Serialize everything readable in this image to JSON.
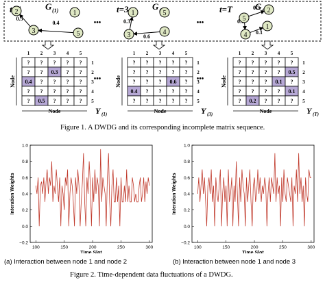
{
  "figure1": {
    "graphs": [
      {
        "t_label": "t=1",
        "g_label": "G",
        "g_sub": "(1)",
        "nodes": [
          {
            "id": "1"
          },
          {
            "id": "2"
          },
          {
            "id": "3"
          },
          {
            "id": "5"
          }
        ],
        "edges": [
          {
            "label": "0.5"
          },
          {
            "label": "0.4"
          }
        ]
      },
      {
        "t_label": "t=3",
        "g_label": "G",
        "g_sub": "(3)",
        "nodes": [
          {
            "id": "1"
          },
          {
            "id": "5"
          },
          {
            "id": "3"
          },
          {
            "id": "4"
          }
        ],
        "edges": [
          {
            "label": "0.3"
          },
          {
            "label": "0.6"
          }
        ]
      },
      {
        "t_label": "t=T",
        "g_label": "G",
        "g_sub": "(T)",
        "nodes": [
          {
            "id": "2"
          },
          {
            "id": "1"
          },
          {
            "id": "5"
          },
          {
            "id": "4"
          }
        ],
        "edges": [
          {
            "label": "0.2"
          },
          {
            "label": "0.1"
          },
          {
            "label": "0.1"
          }
        ]
      }
    ],
    "ellipsis": "•••",
    "matrices": [
      {
        "y_label": "Y",
        "y_sub": "(1)",
        "col_labels": [
          "1",
          "2",
          "3",
          "4",
          "5"
        ],
        "row_labels": [
          "1",
          "2",
          "3",
          "4",
          "5"
        ],
        "cells": [
          [
            "?",
            "?",
            "?",
            "?",
            "?"
          ],
          [
            "?",
            "?",
            "0.3",
            "?",
            "?"
          ],
          [
            "0.4",
            "?",
            "?",
            "?",
            "?"
          ],
          [
            "?",
            "?",
            "?",
            "?",
            "?"
          ],
          [
            "?",
            "0.5",
            "?",
            "?",
            "?"
          ]
        ],
        "highlight": [
          [
            1,
            2
          ],
          [
            2,
            0
          ],
          [
            4,
            1
          ]
        ]
      },
      {
        "y_label": "Y",
        "y_sub": "(3)",
        "col_labels": [
          "1",
          "2",
          "3",
          "4",
          "5"
        ],
        "row_labels": [
          "1",
          "2",
          "3",
          "4",
          "5"
        ],
        "cells": [
          [
            "?",
            "?",
            "?",
            "?",
            "?"
          ],
          [
            "?",
            "?",
            "?",
            "?",
            "?"
          ],
          [
            "?",
            "?",
            "?",
            "0.6",
            "?"
          ],
          [
            "0.4",
            "?",
            "?",
            "?",
            "?"
          ],
          [
            "?",
            "?",
            "?",
            "?",
            "?"
          ]
        ],
        "highlight": [
          [
            2,
            3
          ],
          [
            3,
            0
          ]
        ]
      },
      {
        "y_label": "Y",
        "y_sub": "(T)",
        "col_labels": [
          "1",
          "2",
          "3",
          "4",
          "5"
        ],
        "row_labels": [
          "1",
          "2",
          "3",
          "4",
          "5"
        ],
        "cells": [
          [
            "?",
            "?",
            "?",
            "?",
            "?"
          ],
          [
            "?",
            "?",
            "?",
            "?",
            "0.5"
          ],
          [
            "?",
            "?",
            "?",
            "0.1",
            "?"
          ],
          [
            "?",
            "?",
            "?",
            "?",
            "0.1"
          ],
          [
            "?",
            "0.2",
            "?",
            "?",
            "?"
          ]
        ],
        "highlight": [
          [
            1,
            4
          ],
          [
            2,
            3
          ],
          [
            3,
            4
          ],
          [
            4,
            1
          ]
        ]
      }
    ],
    "axis_node_label": "Node",
    "caption": "Figure 1.    A DWDG and its corresponding incomplete matrix sequence."
  },
  "figure2": {
    "caption": "Figure 2.    Time-dependent data fluctuations of a DWDG.",
    "line_color": "#c0392b",
    "plots": [
      {
        "subcaption": "(a) Interaction between node 1 and node 2",
        "chart_data": {
          "type": "line",
          "xlabel": "Time Slot",
          "ylabel": "Interation Weights",
          "xlim": [
            90,
            305
          ],
          "ylim": [
            -0.2,
            1.0
          ],
          "xticks": [
            "100",
            "150",
            "200",
            "250",
            "300"
          ],
          "yticks": [
            "−0.2",
            "0.0",
            "0.2",
            "0.4",
            "0.6",
            "0.8",
            "1.0"
          ],
          "x": [
            100,
            102,
            104,
            106,
            108,
            110,
            112,
            114,
            116,
            118,
            120,
            122,
            124,
            126,
            128,
            130,
            132,
            134,
            136,
            138,
            140,
            142,
            144,
            146,
            148,
            150,
            152,
            154,
            156,
            158,
            160,
            162,
            164,
            166,
            168,
            170,
            172,
            174,
            176,
            178,
            180,
            182,
            184,
            186,
            188,
            190,
            192,
            194,
            196,
            198,
            200,
            202,
            204,
            206,
            208,
            210,
            212,
            214,
            216,
            218,
            220,
            222,
            224,
            226,
            228,
            230,
            232,
            234,
            236,
            238,
            240,
            242,
            244,
            246,
            248,
            250,
            252,
            254,
            256,
            258,
            260,
            262,
            264,
            266,
            268,
            270,
            272,
            274,
            276,
            278,
            280,
            282,
            284,
            286,
            288,
            290,
            292,
            294,
            296,
            298,
            300
          ],
          "y": [
            0.5,
            0.4,
            0.6,
            0.0,
            0.5,
            0.55,
            0.4,
            0.6,
            0.3,
            0.55,
            0.7,
            0.4,
            0.6,
            0.5,
            0.8,
            0.3,
            0.5,
            0.4,
            0.7,
            0.5,
            0.3,
            0.6,
            0.0,
            0.5,
            0.4,
            0.2,
            0.6,
            0.5,
            0.7,
            0.0,
            0.4,
            0.6,
            0.5,
            0.3,
            0.0,
            0.6,
            0.4,
            0.7,
            0.5,
            0.0,
            0.3,
            0.55,
            0.9,
            0.3,
            0.0,
            0.6,
            0.4,
            0.8,
            0.5,
            0.0,
            0.6,
            0.3,
            0.7,
            0.4,
            0.6,
            0.5,
            0.0,
            0.95,
            0.3,
            0.6,
            0.5,
            0.4,
            0.0,
            0.6,
            0.9,
            0.3,
            0.0,
            0.5,
            0.7,
            0.3,
            0.3,
            0.6,
            0.3,
            0.5,
            0.0,
            0.6,
            0.3,
            0.3,
            0.5,
            0.3,
            0.7,
            0.3,
            0.5,
            0.3,
            0.3,
            0.6,
            0.5,
            0.3,
            0.4,
            0.3,
            0.3,
            0.5,
            0.6,
            0.3,
            0.4,
            0.6,
            0.3,
            0.55,
            0.4,
            0.6,
            0.5
          ]
        }
      },
      {
        "subcaption": "(b) Interaction between node 1 and node 3",
        "chart_data": {
          "type": "line",
          "xlabel": "Time Slot",
          "ylabel": "Interation Weights",
          "xlim": [
            90,
            305
          ],
          "ylim": [
            -0.2,
            1.0
          ],
          "xticks": [
            "100",
            "150",
            "200",
            "250",
            "300"
          ],
          "yticks": [
            "−0.2",
            "0.0",
            "0.2",
            "0.4",
            "0.6",
            "0.8",
            "1.0"
          ],
          "x": [
            100,
            102,
            104,
            106,
            108,
            110,
            112,
            114,
            116,
            118,
            120,
            122,
            124,
            126,
            128,
            130,
            132,
            134,
            136,
            138,
            140,
            142,
            144,
            146,
            148,
            150,
            152,
            154,
            156,
            158,
            160,
            162,
            164,
            166,
            168,
            170,
            172,
            174,
            176,
            178,
            180,
            182,
            184,
            186,
            188,
            190,
            192,
            194,
            196,
            198,
            200,
            202,
            204,
            206,
            208,
            210,
            212,
            214,
            216,
            218,
            220,
            222,
            224,
            226,
            228,
            230,
            232,
            234,
            236,
            238,
            240,
            242,
            244,
            246,
            248,
            250,
            252,
            254,
            256,
            258,
            260,
            262,
            264,
            266,
            268,
            270,
            272,
            274,
            276,
            278,
            280,
            282,
            284,
            286,
            288,
            290,
            292,
            294,
            296,
            298,
            300
          ],
          "y": [
            0.4,
            0.6,
            0.3,
            0.5,
            0.7,
            0.4,
            0.6,
            0.3,
            0.0,
            0.5,
            0.6,
            0.4,
            0.7,
            0.3,
            0.5,
            0.0,
            0.6,
            0.4,
            0.3,
            0.5,
            0.7,
            0.0,
            0.4,
            0.6,
            0.3,
            0.5,
            0.0,
            0.7,
            0.3,
            0.4,
            0.6,
            0.0,
            0.5,
            0.3,
            0.8,
            0.4,
            0.0,
            0.6,
            0.3,
            0.7,
            0.5,
            0.4,
            0.0,
            0.6,
            0.3,
            0.5,
            0.7,
            0.3,
            0.0,
            0.5,
            0.6,
            0.3,
            0.4,
            0.7,
            0.4,
            0.6,
            0.3,
            0.5,
            0.4,
            0.6,
            0.5,
            0.0,
            0.4,
            0.6,
            0.3,
            0.6,
            0.5,
            0.4,
            0.9,
            0.3,
            0.6,
            0.4,
            0.5,
            0.0,
            0.6,
            0.3,
            0.7,
            0.4,
            0.3,
            0.6,
            0.5,
            0.4,
            0.3,
            0.6,
            0.0,
            0.5,
            0.4,
            0.7,
            0.3,
            0.9,
            0.4,
            0.6,
            0.3,
            0.5,
            0.0,
            0.6,
            0.4,
            0.3,
            0.7,
            0.6,
            0.6
          ]
        }
      }
    ]
  }
}
